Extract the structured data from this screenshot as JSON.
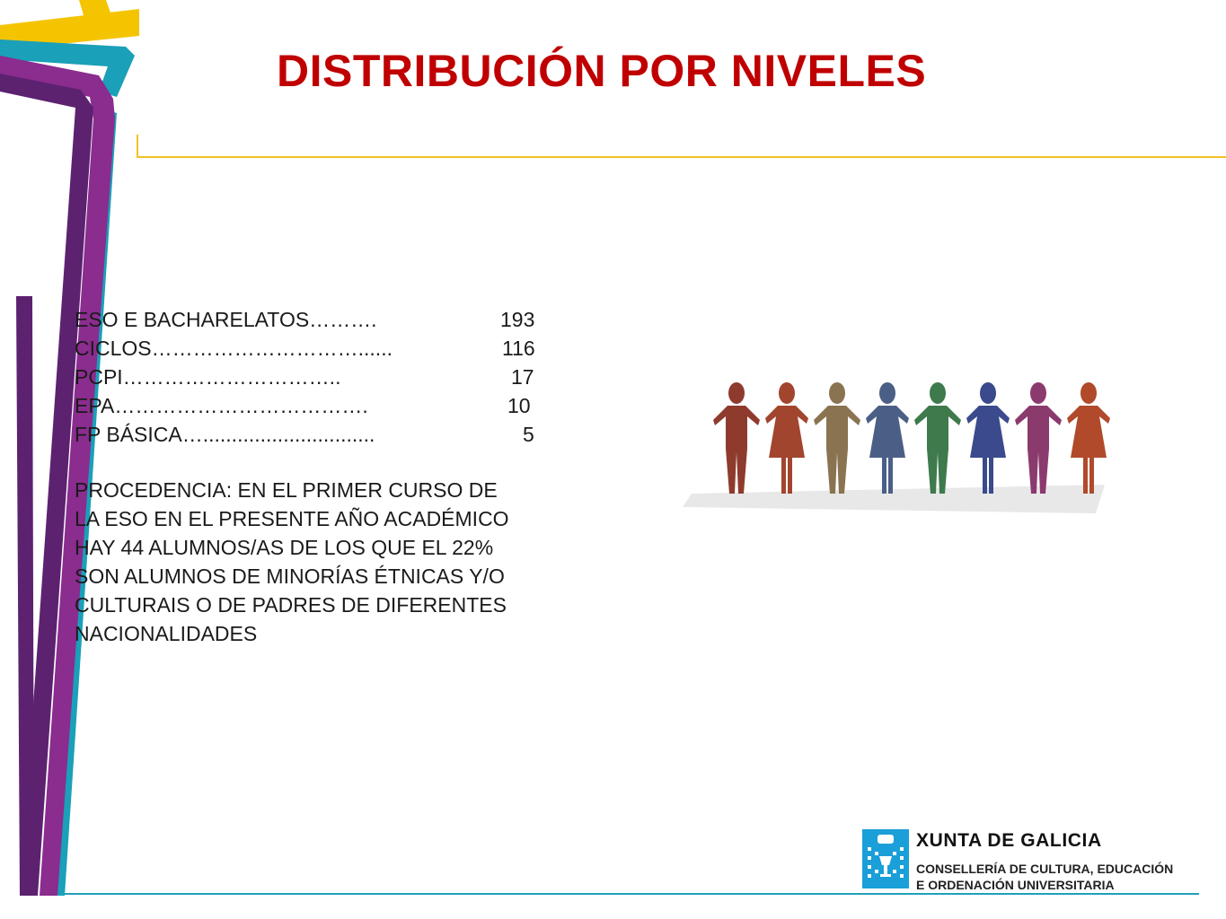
{
  "title": "DISTRIBUCIÓN POR NIVELES",
  "levels": [
    {
      "label": "ESO E BACHARELATOS……….",
      "value": "193"
    },
    {
      "label": "CICLOS…………………………......",
      "value": "116"
    },
    {
      "label": "PCPI…………………………..",
      "value": "17"
    },
    {
      "label": "EPA……………………………….",
      "value": "10"
    },
    {
      "label": "FP BÁSICA…..............................",
      "value": "5"
    }
  ],
  "procedencia": "PROCEDENCIA: EN EL PRIMER CURSO DE\nLA ESO EN EL PRESENTE AÑO ACADÉMICO\nHAY 44 ALUMNOS/AS DE LOS QUE EL 22%\nSON ALUMNOS DE MINORÍAS ÉTNICAS Y/O\nCULTURAIS O DE PADRES DE DIFERENTES\nNACIONALIDADES",
  "footer": {
    "org": "XUNTA DE GALICIA",
    "dept_line1": "CONSELLERÍA DE CULTURA, EDUCACIÓN",
    "dept_line2": "E ORDENACIÓN UNIVERSITARIA"
  },
  "colors": {
    "title": "#c00000",
    "purple_dark": "#5c2270",
    "purple": "#8b2c8f",
    "teal": "#1aa0b8",
    "yellow": "#f5c400",
    "logo_blue": "#1a9fd9"
  },
  "people_colors": [
    "#8e3b2e",
    "#a2452f",
    "#8a7350",
    "#4b5f86",
    "#3e7a4c",
    "#3a4a8c",
    "#8b3a6e",
    "#b04a2a"
  ]
}
